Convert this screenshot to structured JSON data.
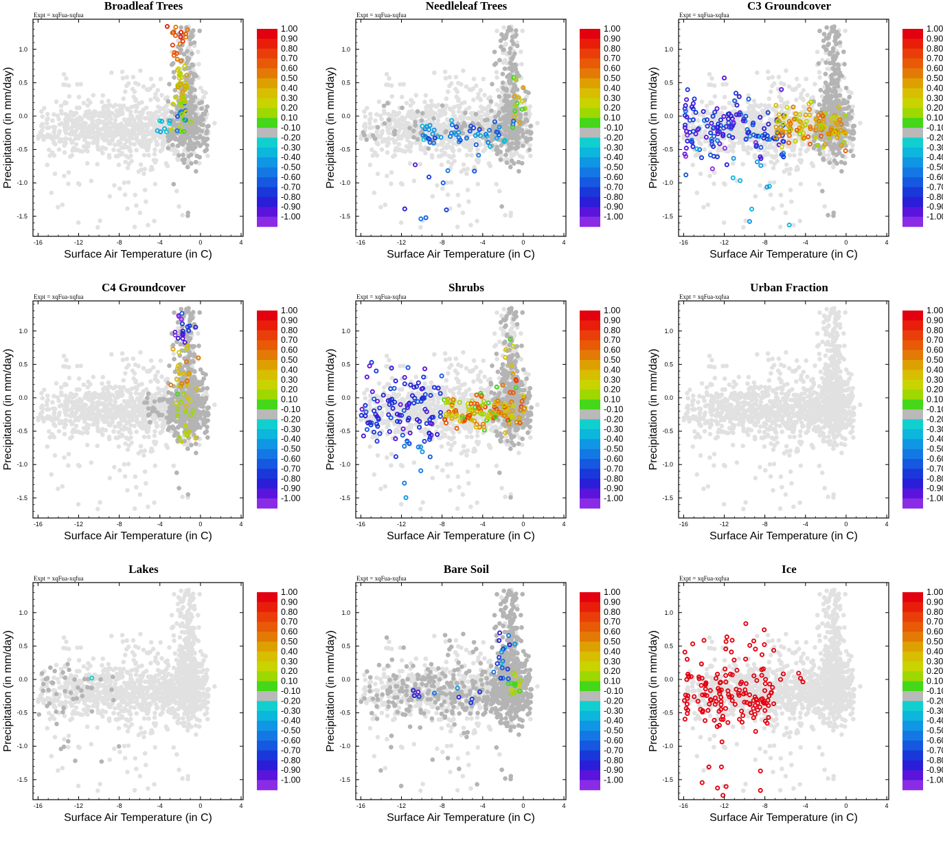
{
  "figure": {
    "expt_label": "Expt = xqFua-xqfua",
    "xlabel": "Surface Air Temperature (in C)",
    "ylabel": "Precipitation (in mm/day)"
  },
  "chart_data": [
    {
      "type": "scatter",
      "title": "Broadleaf Trees",
      "pattern": "hot_peak",
      "xlim": [
        -16.5,
        4.2
      ],
      "ylim": [
        -1.8,
        1.45
      ],
      "xticks": [
        -16,
        -12,
        -8,
        -4,
        0,
        4
      ],
      "yticks": [
        -1.5,
        -1.0,
        -0.5,
        0.0,
        0.5,
        1.0
      ]
    },
    {
      "type": "scatter",
      "title": "Needleleaf Trees",
      "pattern": "cool_band",
      "xlim": [
        -16.5,
        4.2
      ],
      "ylim": [
        -1.8,
        1.45
      ],
      "xticks": [
        -16,
        -12,
        -8,
        -4,
        0,
        4
      ],
      "yticks": [
        -1.5,
        -1.0,
        -0.5,
        0.0,
        0.5,
        1.0
      ]
    },
    {
      "type": "scatter",
      "title": "C3 Groundcover",
      "pattern": "c3",
      "xlim": [
        -16.5,
        4.2
      ],
      "ylim": [
        -1.8,
        1.45
      ],
      "xticks": [
        -16,
        -12,
        -8,
        -4,
        0,
        4
      ],
      "yticks": [
        -1.5,
        -1.0,
        -0.5,
        0.0,
        0.5,
        1.0
      ]
    },
    {
      "type": "scatter",
      "title": "C4 Groundcover",
      "pattern": "c4",
      "xlim": [
        -16.5,
        4.2
      ],
      "ylim": [
        -1.8,
        1.45
      ],
      "xticks": [
        -16,
        -12,
        -8,
        -4,
        0,
        4
      ],
      "yticks": [
        -1.5,
        -1.0,
        -0.5,
        0.0,
        0.5,
        1.0
      ]
    },
    {
      "type": "scatter",
      "title": "Shrubs",
      "pattern": "shrubs",
      "xlim": [
        -16.5,
        4.2
      ],
      "ylim": [
        -1.8,
        1.45
      ],
      "xticks": [
        -16,
        -12,
        -8,
        -4,
        0,
        4
      ],
      "yticks": [
        -1.5,
        -1.0,
        -0.5,
        0.0,
        0.5,
        1.0
      ]
    },
    {
      "type": "scatter",
      "title": "Urban Fraction",
      "pattern": "none",
      "xlim": [
        -16.5,
        4.2
      ],
      "ylim": [
        -1.8,
        1.45
      ],
      "xticks": [
        -16,
        -12,
        -8,
        -4,
        0,
        4
      ],
      "yticks": [
        -1.5,
        -1.0,
        -0.5,
        0.0,
        0.5,
        1.0
      ]
    },
    {
      "type": "scatter",
      "title": "Lakes",
      "pattern": "lakes",
      "xlim": [
        -16.5,
        4.2
      ],
      "ylim": [
        -1.8,
        1.45
      ],
      "xticks": [
        -16,
        -12,
        -8,
        -4,
        0,
        4
      ],
      "yticks": [
        -1.5,
        -1.0,
        -0.5,
        0.0,
        0.5,
        1.0
      ]
    },
    {
      "type": "scatter",
      "title": "Bare Soil",
      "pattern": "bare",
      "xlim": [
        -16.5,
        4.2
      ],
      "ylim": [
        -1.8,
        1.45
      ],
      "xticks": [
        -16,
        -12,
        -8,
        -4,
        0,
        4
      ],
      "yticks": [
        -1.5,
        -1.0,
        -0.5,
        0.0,
        0.5,
        1.0
      ]
    },
    {
      "type": "scatter",
      "title": "Ice",
      "pattern": "ice",
      "xlim": [
        -16.5,
        4.2
      ],
      "ylim": [
        -1.8,
        1.45
      ],
      "xticks": [
        -16,
        -12,
        -8,
        -4,
        0,
        4
      ],
      "yticks": [
        -1.5,
        -1.0,
        -0.5,
        0.0,
        0.5,
        1.0
      ]
    }
  ],
  "colorbar": {
    "labels": [
      "1.00",
      "0.90",
      "0.80",
      "0.70",
      "0.60",
      "0.50",
      "0.40",
      "0.30",
      "0.20",
      "0.10",
      "-0.10",
      "-0.20",
      "-0.30",
      "-0.40",
      "-0.50",
      "-0.60",
      "-0.70",
      "-0.80",
      "-0.90",
      "-1.00"
    ],
    "colors": [
      "#e3000f",
      "#e81e0a",
      "#ea3e0a",
      "#e85a06",
      "#e37a05",
      "#dea000",
      "#d8be00",
      "#c8d300",
      "#9ed800",
      "#44d71a",
      "#b9b9b9",
      "#12cfcf",
      "#0cb6dc",
      "#0f96e4",
      "#1478e4",
      "#1658e0",
      "#1a38da",
      "#2a1ed8",
      "#5a14dc",
      "#8a2ce6"
    ]
  }
}
